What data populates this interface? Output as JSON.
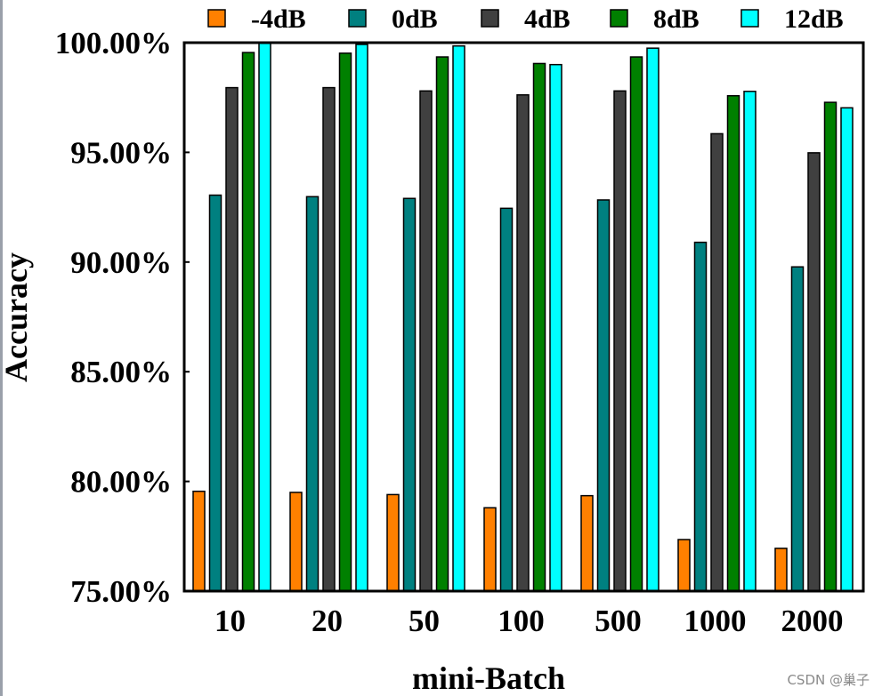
{
  "watermark": "CSDN @巢子",
  "chart_data": {
    "type": "bar",
    "xlabel": "mini-Batch",
    "ylabel": "Accuracy",
    "categories": [
      "10",
      "20",
      "50",
      "100",
      "500",
      "1000",
      "2000"
    ],
    "ylim": [
      0.75,
      1.0
    ],
    "yticks": [
      "75.00%",
      "80.00%",
      "85.00%",
      "90.00%",
      "95.00%",
      "100.00%"
    ],
    "grid": false,
    "legend_position": "top",
    "series": [
      {
        "name": "-4dB",
        "color": "#ff8000",
        "values": [
          0.7955,
          0.795,
          0.794,
          0.788,
          0.7935,
          0.7735,
          0.7695
        ]
      },
      {
        "name": "0dB",
        "color": "#008080",
        "values": [
          0.9305,
          0.9298,
          0.929,
          0.9245,
          0.9283,
          0.909,
          0.8978
        ]
      },
      {
        "name": "4dB",
        "color": "#404040",
        "values": [
          0.9795,
          0.9795,
          0.978,
          0.9762,
          0.978,
          0.9585,
          0.9498
        ]
      },
      {
        "name": "8dB",
        "color": "#008000",
        "values": [
          0.9955,
          0.9952,
          0.9935,
          0.9905,
          0.9935,
          0.9758,
          0.9728
        ]
      },
      {
        "name": "12dB",
        "color": "#00ffff",
        "values": [
          1.0,
          0.9992,
          0.9985,
          0.99,
          0.9975,
          0.9778,
          0.9703
        ]
      }
    ]
  }
}
